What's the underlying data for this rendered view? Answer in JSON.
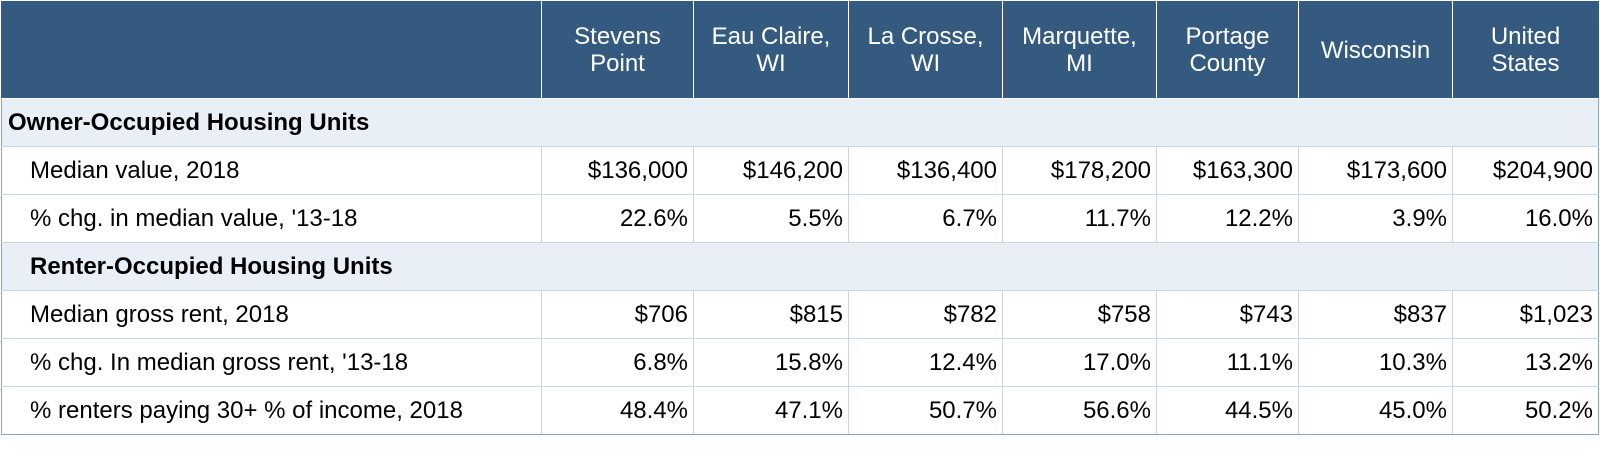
{
  "header": {
    "corner": "",
    "columns": [
      [
        "Stevens",
        "Point"
      ],
      [
        "Eau Claire,",
        "WI"
      ],
      [
        "La Crosse,",
        "WI"
      ],
      [
        "Marquette,",
        "MI"
      ],
      [
        "Portage",
        "County"
      ],
      [
        "Wisconsin"
      ],
      [
        "United",
        "States"
      ]
    ]
  },
  "sections": [
    {
      "title": "Owner-Occupied Housing Units",
      "rows": [
        {
          "label": "Median value, 2018",
          "values": [
            "$136,000",
            "$146,200",
            "$136,400",
            "$178,200",
            "$163,300",
            "$173,600",
            "$204,900"
          ]
        },
        {
          "label": "% chg. in median value, '13-18",
          "values": [
            "22.6%",
            "5.5%",
            "6.7%",
            "11.7%",
            "12.2%",
            "3.9%",
            "16.0%"
          ]
        }
      ]
    },
    {
      "title": "Renter-Occupied Housing Units",
      "rows": [
        {
          "label": "Median gross rent, 2018",
          "values": [
            "$706",
            "$815",
            "$782",
            "$758",
            "$743",
            "$837",
            "$1,023"
          ]
        },
        {
          "label": "% chg. In median gross rent, '13-18",
          "values": [
            "6.8%",
            "15.8%",
            "12.4%",
            "17.0%",
            "11.1%",
            "10.3%",
            "13.2%"
          ]
        },
        {
          "label": "% renters paying 30+ % of income, 2018",
          "values": [
            "48.4%",
            "47.1%",
            "50.7%",
            "56.6%",
            "44.5%",
            "45.0%",
            "50.2%"
          ]
        }
      ]
    }
  ]
}
